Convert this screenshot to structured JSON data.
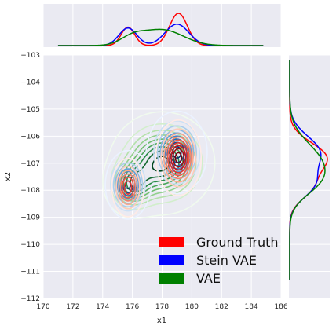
{
  "chart_data": {
    "type": "jointplot-kde",
    "xlabel": "x1",
    "ylabel": "x2",
    "xlim": [
      170,
      186
    ],
    "ylim": [
      -112,
      -103
    ],
    "xticks": [
      170,
      172,
      174,
      176,
      178,
      180,
      182,
      184,
      186
    ],
    "yticks": [
      -103,
      -104,
      -105,
      -106,
      -107,
      -108,
      -109,
      -110,
      -111,
      -112
    ],
    "xtick_labels": [
      "170",
      "172",
      "174",
      "176",
      "178",
      "180",
      "182",
      "184",
      "186"
    ],
    "ytick_labels": [
      "−103",
      "−104",
      "−105",
      "−106",
      "−107",
      "−108",
      "−109",
      "−110",
      "−111",
      "−112"
    ],
    "grid": true,
    "legend_position": "bottom-right",
    "series": [
      {
        "name": "Ground Truth",
        "color": "#ff0000",
        "contour_colormap": "reds",
        "components": [
          {
            "x": 179.1,
            "y": -106.8,
            "sx": 0.6,
            "sy": 0.55,
            "w": 0.7
          },
          {
            "x": 175.7,
            "y": -107.9,
            "sx": 0.45,
            "sy": 0.45,
            "w": 0.3
          }
        ],
        "x_marginal_peak_x": 179.1,
        "y_marginal_peak_y": -107.0
      },
      {
        "name": "Stein VAE",
        "color": "#0000ff",
        "contour_colormap": "blues",
        "components": [
          {
            "x": 179.0,
            "y": -106.6,
            "sx": 0.8,
            "sy": 0.6,
            "w": 0.62
          },
          {
            "x": 175.7,
            "y": -107.8,
            "sx": 0.6,
            "sy": 0.5,
            "w": 0.38
          }
        ],
        "x_marginal_peak_x": 178.9,
        "y_marginal_peak_y": -106.8
      },
      {
        "name": "VAE",
        "color": "#008000",
        "contour_colormap": "greens",
        "components": [
          {
            "x": 178.0,
            "y": -107.0,
            "sx": 1.4,
            "sy": 0.75,
            "w": 0.8
          },
          {
            "x": 176.0,
            "y": -107.8,
            "sx": 0.8,
            "sy": 0.5,
            "w": 0.2
          }
        ],
        "x_marginal_peak_x": 177.8,
        "y_marginal_peak_y": -107.0
      }
    ]
  },
  "colors": {
    "panel_background": "#eaeaf2",
    "grid": "#ffffff"
  }
}
